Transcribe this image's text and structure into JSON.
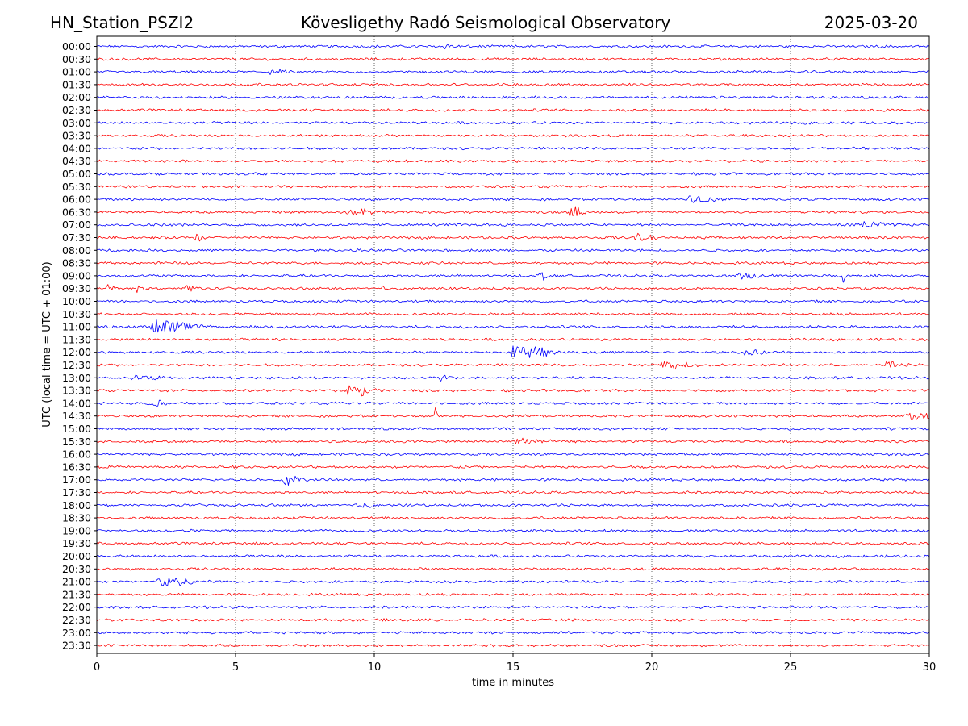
{
  "header": {
    "station": "HN_Station_PSZI2",
    "title": "Kövesligethy Radó Seismological Observatory",
    "date": "2025-03-20"
  },
  "chart_data": {
    "type": "line",
    "subtype": "helicorder",
    "title": "Kövesligethy Radó Seismological Observatory",
    "xlabel": "time in minutes",
    "ylabel": "UTC (local time = UTC + 01:00)",
    "xlim": [
      0,
      30
    ],
    "xticks": [
      0,
      5,
      10,
      15,
      20,
      25,
      30
    ],
    "grid": "vertical dotted at x ticks",
    "colors": {
      "even_rows": "#0000ff",
      "odd_rows": "#ff0000"
    },
    "rows": [
      "00:00",
      "00:30",
      "01:00",
      "01:30",
      "02:00",
      "02:30",
      "03:00",
      "03:30",
      "04:00",
      "04:30",
      "05:00",
      "05:30",
      "06:00",
      "06:30",
      "07:00",
      "07:30",
      "08:00",
      "08:30",
      "09:00",
      "09:30",
      "10:00",
      "10:30",
      "11:00",
      "11:30",
      "12:00",
      "12:30",
      "13:00",
      "13:30",
      "14:00",
      "14:30",
      "15:00",
      "15:30",
      "16:00",
      "16:30",
      "17:00",
      "17:30",
      "18:00",
      "18:30",
      "19:00",
      "19:30",
      "20:00",
      "20:30",
      "21:00",
      "21:30",
      "22:00",
      "22:30",
      "23:00",
      "23:30"
    ],
    "noise_level": 0.25,
    "events": [
      {
        "row": "00:00",
        "t": 12.6,
        "amp": 0.6,
        "dur": 0.4
      },
      {
        "row": "01:00",
        "t": 6.3,
        "amp": 0.6,
        "dur": 0.6
      },
      {
        "row": "06:00",
        "t": 21.5,
        "amp": 0.9,
        "dur": 1.0
      },
      {
        "row": "06:30",
        "t": 17.2,
        "amp": 1.3,
        "dur": 0.5
      },
      {
        "row": "06:30",
        "t": 9.2,
        "amp": 0.9,
        "dur": 1.0
      },
      {
        "row": "07:00",
        "t": 27.8,
        "amp": 0.8,
        "dur": 0.8
      },
      {
        "row": "07:30",
        "t": 3.6,
        "amp": 0.9,
        "dur": 0.3
      },
      {
        "row": "07:30",
        "t": 19.5,
        "amp": 0.8,
        "dur": 1.0
      },
      {
        "row": "09:00",
        "t": 16.0,
        "amp": 1.2,
        "dur": 0.3
      },
      {
        "row": "09:00",
        "t": 23.3,
        "amp": 1.0,
        "dur": 0.6
      },
      {
        "row": "09:00",
        "t": 26.9,
        "amp": 2.6,
        "dur": 0.08
      },
      {
        "row": "09:30",
        "t": 0.4,
        "amp": 0.9,
        "dur": 0.4
      },
      {
        "row": "09:30",
        "t": 1.5,
        "amp": 0.9,
        "dur": 0.3
      },
      {
        "row": "09:30",
        "t": 3.3,
        "amp": 1.0,
        "dur": 0.5
      },
      {
        "row": "09:30",
        "t": 10.3,
        "amp": 0.8,
        "dur": 0.2
      },
      {
        "row": "11:00",
        "t": 2.3,
        "amp": 1.9,
        "dur": 1.3
      },
      {
        "row": "12:00",
        "t": 15.3,
        "amp": 1.7,
        "dur": 1.2
      },
      {
        "row": "12:00",
        "t": 23.5,
        "amp": 0.8,
        "dur": 0.6
      },
      {
        "row": "12:30",
        "t": 20.6,
        "amp": 1.0,
        "dur": 1.0
      },
      {
        "row": "12:30",
        "t": 28.6,
        "amp": 0.9,
        "dur": 0.8
      },
      {
        "row": "13:00",
        "t": 1.5,
        "amp": 0.8,
        "dur": 1.0
      },
      {
        "row": "13:00",
        "t": 12.4,
        "amp": 0.8,
        "dur": 0.3
      },
      {
        "row": "13:30",
        "t": 9.3,
        "amp": 1.4,
        "dur": 1.0
      },
      {
        "row": "14:00",
        "t": 2.0,
        "amp": 0.8,
        "dur": 0.8
      },
      {
        "row": "14:30",
        "t": 12.2,
        "amp": 2.2,
        "dur": 0.06
      },
      {
        "row": "14:30",
        "t": 29.4,
        "amp": 1.1,
        "dur": 1.0
      },
      {
        "row": "15:30",
        "t": 15.3,
        "amp": 0.9,
        "dur": 0.8
      },
      {
        "row": "17:00",
        "t": 6.9,
        "amp": 1.3,
        "dur": 0.6
      },
      {
        "row": "18:00",
        "t": 9.5,
        "amp": 0.7,
        "dur": 0.6
      },
      {
        "row": "21:00",
        "t": 2.5,
        "amp": 1.3,
        "dur": 1.2
      }
    ]
  }
}
